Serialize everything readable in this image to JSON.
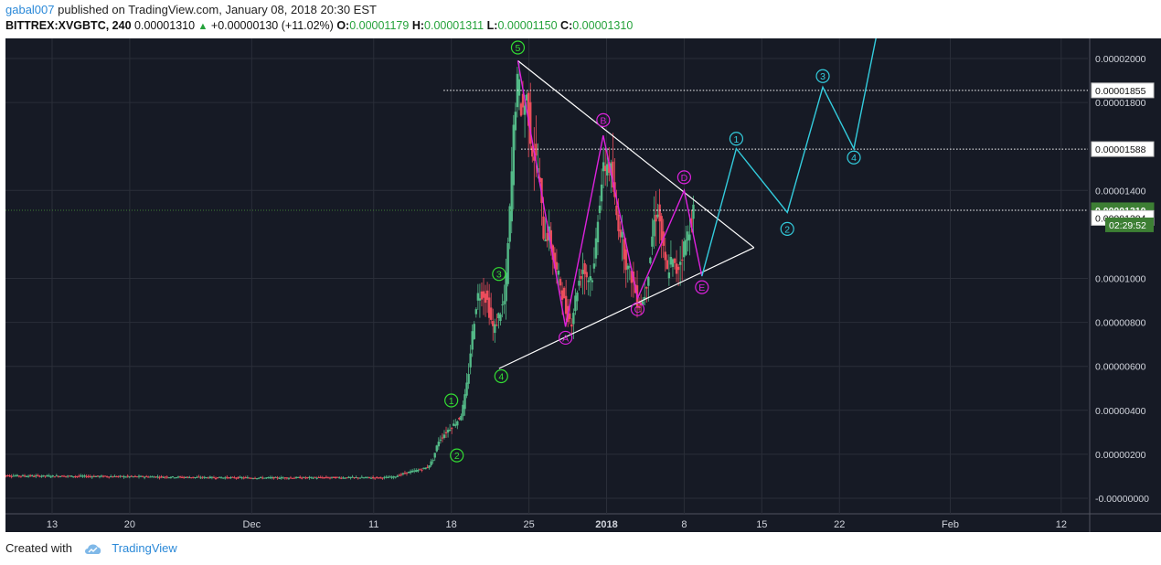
{
  "header": {
    "user": "gabal007",
    "published": "published on TradingView.com, January 08, 2018 20:30 EST",
    "symbol": "BITTREX:XVGBTC, 240",
    "last": "0.00001310",
    "change": "+0.00000130 (+11.02%)",
    "o_label": "O:",
    "o_value": "0.00001179",
    "h_label": "H:",
    "h_value": "0.00001311",
    "l_label": "L:",
    "l_value": "0.00001150",
    "c_label": "C:",
    "c_value": "0.00001310"
  },
  "footer": {
    "created": "Created with",
    "brand": "TradingView"
  },
  "colors": {
    "background": "#161a25",
    "grid": "#2a2e39",
    "up": "#53b987",
    "down": "#eb4d5c",
    "wave_green": "#33dd33",
    "wave_magenta": "#dd22dd",
    "projection": "#33ccdd",
    "triangle": "#ffffff",
    "current_price": "#3d7f34"
  },
  "chart_data": {
    "type": "candlestick",
    "yaxis": {
      "labels": [
        {
          "v": 2000,
          "t": "0.00002000"
        },
        {
          "v": 1800,
          "t": "0.00001800"
        },
        {
          "v": 1400,
          "t": "0.00001400"
        },
        {
          "v": 1000,
          "t": "0.00001000"
        },
        {
          "v": 800,
          "t": "0.00000800"
        },
        {
          "v": 600,
          "t": "0.00000600"
        },
        {
          "v": 400,
          "t": "0.00000400"
        },
        {
          "v": 200,
          "t": "0.00000200"
        },
        {
          "v": 0,
          "t": "-0.00000000"
        }
      ]
    },
    "xaxis": {
      "labels": [
        {
          "d": -19,
          "t": "13"
        },
        {
          "d": -12,
          "t": "20"
        },
        {
          "d": -1,
          "t": "Dec"
        },
        {
          "d": 10,
          "t": "11"
        },
        {
          "d": 17,
          "t": "18"
        },
        {
          "d": 24,
          "t": "25"
        },
        {
          "d": 31,
          "t": "2018",
          "bold": true
        },
        {
          "d": 38,
          "t": "8"
        },
        {
          "d": 45,
          "t": "15"
        },
        {
          "d": 52,
          "t": "22"
        },
        {
          "d": 62,
          "t": "Feb"
        },
        {
          "d": 72,
          "t": "12"
        }
      ]
    },
    "price_markers": [
      {
        "v": 1855,
        "t": "0.00001855",
        "style": "dotted",
        "x_from": 16.3
      },
      {
        "v": 1588,
        "t": "0.00001588",
        "style": "dotted",
        "x_from": 23.3
      },
      {
        "v": 1310,
        "t": "0.00001310",
        "style": "current"
      },
      {
        "v": 1304,
        "t": "0.00001304",
        "style": "box"
      }
    ],
    "countdown": "02:29:52",
    "candle_path": [
      [
        -23.5,
        103
      ],
      [
        -16,
        100
      ],
      [
        -10,
        98
      ],
      [
        -4,
        94
      ],
      [
        0,
        93
      ],
      [
        6,
        94
      ],
      [
        11,
        94
      ],
      [
        12,
        97
      ],
      [
        13,
        115
      ],
      [
        14,
        126
      ],
      [
        15,
        140
      ],
      [
        15.5,
        175
      ],
      [
        16,
        260
      ],
      [
        16.5,
        290
      ],
      [
        17,
        318
      ],
      [
        17.5,
        340
      ],
      [
        18,
        372
      ],
      [
        18.3,
        430
      ],
      [
        18.7,
        560
      ],
      [
        19,
        720
      ],
      [
        19.5,
        920
      ],
      [
        20,
        940
      ],
      [
        20.4,
        900
      ],
      [
        20.7,
        820
      ],
      [
        21,
        760
      ],
      [
        21.5,
        840
      ],
      [
        22,
        900
      ],
      [
        22.5,
        1350
      ],
      [
        22.8,
        1680
      ],
      [
        23,
        1840
      ],
      [
        23.2,
        1900
      ],
      [
        23.5,
        1760
      ],
      [
        24,
        1820
      ],
      [
        24.4,
        1600
      ],
      [
        25,
        1500
      ],
      [
        25.5,
        1200
      ],
      [
        26,
        1200
      ],
      [
        26.5,
        1050
      ],
      [
        27,
        980
      ],
      [
        27.5,
        850
      ],
      [
        28,
        800
      ],
      [
        28.5,
        950
      ],
      [
        29,
        1050
      ],
      [
        29.5,
        1000
      ],
      [
        30,
        1020
      ],
      [
        30.4,
        1300
      ],
      [
        30.8,
        1470
      ],
      [
        31.2,
        1530
      ],
      [
        31.6,
        1480
      ],
      [
        32,
        1300
      ],
      [
        32.5,
        1200
      ],
      [
        33,
        1050
      ],
      [
        33.5,
        1000
      ],
      [
        34,
        880
      ],
      [
        34.5,
        900
      ],
      [
        35,
        1050
      ],
      [
        35.4,
        1250
      ],
      [
        35.8,
        1320
      ],
      [
        36.2,
        1150
      ],
      [
        36.6,
        1020
      ],
      [
        37,
        1080
      ],
      [
        37.5,
        1030
      ],
      [
        38,
        1120
      ],
      [
        38.5,
        1200
      ],
      [
        39,
        1310
      ]
    ],
    "annotations": {
      "green_waves": [
        {
          "t": "1",
          "d": 17.0,
          "v": 445
        },
        {
          "t": "2",
          "d": 17.5,
          "v": 195
        },
        {
          "t": "3",
          "d": 21.3,
          "v": 1020
        },
        {
          "t": "4",
          "d": 21.5,
          "v": 555
        },
        {
          "t": "5",
          "d": 23.0,
          "v": 2050
        }
      ],
      "magenta_waves": [
        {
          "t": "A",
          "d": 27.3,
          "v": 730
        },
        {
          "t": "B",
          "d": 30.7,
          "v": 1720
        },
        {
          "t": "C",
          "d": 33.8,
          "v": 860
        },
        {
          "t": "D",
          "d": 38.0,
          "v": 1460
        },
        {
          "t": "E",
          "d": 39.6,
          "v": 960
        }
      ],
      "magenta_path": [
        [
          23.0,
          1990
        ],
        [
          27.3,
          780
        ],
        [
          30.7,
          1650
        ],
        [
          33.8,
          910
        ],
        [
          38.0,
          1400
        ],
        [
          39.6,
          1010
        ]
      ],
      "projection_waves": [
        {
          "t": "1",
          "d": 42.7,
          "v": 1635
        },
        {
          "t": "2",
          "d": 47.3,
          "v": 1225
        },
        {
          "t": "3",
          "d": 50.5,
          "v": 1920
        },
        {
          "t": "4",
          "d": 53.3,
          "v": 1550
        }
      ],
      "projection_path": [
        [
          39.6,
          1010
        ],
        [
          42.7,
          1590
        ],
        [
          47.3,
          1300
        ],
        [
          50.5,
          1870
        ],
        [
          53.3,
          1590
        ],
        [
          56,
          2270
        ]
      ],
      "triangle": {
        "upper": [
          [
            23.0,
            1990
          ],
          [
            44.3,
            1140
          ]
        ],
        "lower": [
          [
            21.3,
            590
          ],
          [
            44.3,
            1140
          ]
        ]
      }
    }
  }
}
